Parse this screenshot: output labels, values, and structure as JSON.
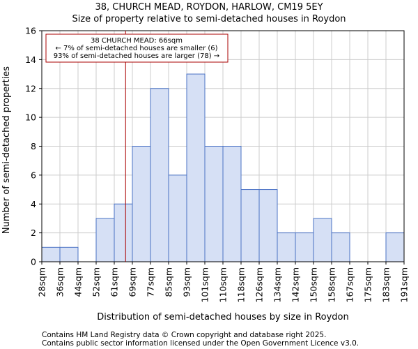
{
  "titles": {
    "line1": "38, CHURCH MEAD, ROYDON, HARLOW, CM19 5EY",
    "line2": "Size of property relative to semi-detached houses in Roydon"
  },
  "annotation": {
    "line1": "38 CHURCH MEAD: 66sqm",
    "line2": "← 7% of semi-detached houses are smaller (6)",
    "line3": "93% of semi-detached houses are larger (78) →",
    "marker_value": 66,
    "marker_color": "#aa0000",
    "box_border_color": "#aa0000"
  },
  "footer": {
    "line1": "Contains HM Land Registry data © Crown copyright and database right 2025.",
    "line2": "Contains public sector information licensed under the Open Government Licence v3.0."
  },
  "colors": {
    "bar_fill": "#d6e0f5",
    "bar_stroke": "#4a72c4",
    "grid": "#cccccc"
  },
  "chart_data": {
    "type": "bar",
    "xlabel": "Distribution of semi-detached houses by size in Roydon",
    "ylabel": "Number of semi-detached properties",
    "ylim": [
      0,
      16
    ],
    "yticks": [
      0,
      2,
      4,
      6,
      8,
      10,
      12,
      14,
      16
    ],
    "grid": true,
    "bin_edges": [
      28,
      36,
      44,
      52,
      61,
      69,
      77,
      85,
      93,
      101,
      110,
      118,
      126,
      134,
      142,
      150,
      158,
      167,
      175,
      183,
      191
    ],
    "xtick_labels": [
      "28sqm",
      "36sqm",
      "44sqm",
      "52sqm",
      "61sqm",
      "69sqm",
      "77sqm",
      "85sqm",
      "93sqm",
      "101sqm",
      "110sqm",
      "118sqm",
      "126sqm",
      "134sqm",
      "142sqm",
      "150sqm",
      "158sqm",
      "167sqm",
      "175sqm",
      "183sqm",
      "191sqm"
    ],
    "values": [
      1,
      1,
      0,
      3,
      4,
      8,
      12,
      6,
      13,
      8,
      8,
      5,
      5,
      2,
      2,
      3,
      2,
      0,
      0,
      2
    ]
  }
}
